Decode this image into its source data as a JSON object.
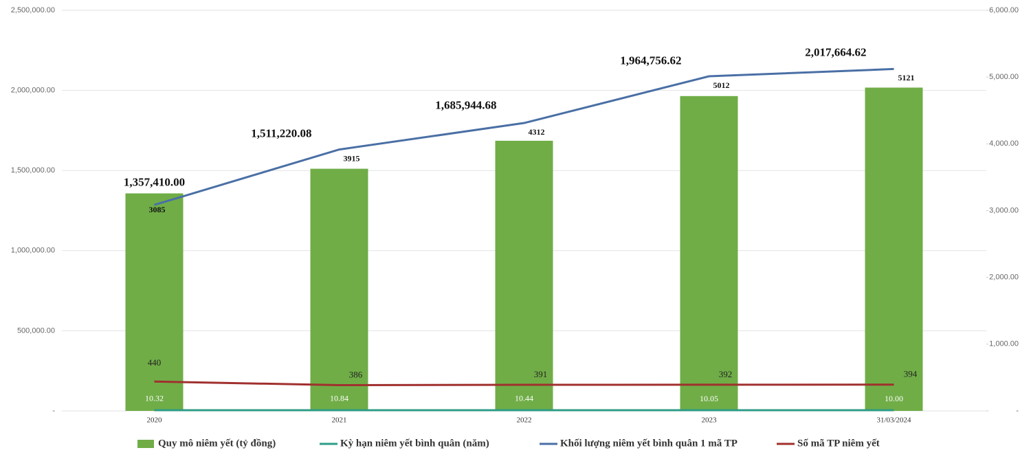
{
  "chart_data": {
    "type": "bar-line",
    "categories": [
      "2020",
      "2021",
      "2022",
      "2023",
      "31/03/2024"
    ],
    "series": [
      {
        "name": "Quy mô niêm yết (tỷ đồng)",
        "type": "bar",
        "color": "#70ad47",
        "axis": "y",
        "values": [
          1357410,
          1511220.08,
          1685944.68,
          1964756.62,
          2017664.62
        ],
        "value_labels": [
          "1,357,410.00",
          "1,511,220.08",
          "1,685,944.68",
          "1,964,756.62",
          "2,017,664.62"
        ]
      },
      {
        "name": "Kỳ hạn niêm yết bình quân (năm)",
        "type": "line",
        "color": "#2e9c86",
        "axis": "y2",
        "values": [
          10.32,
          10.84,
          10.44,
          10.05,
          10
        ],
        "value_labels": [
          "10.32",
          "10.84",
          "10.44",
          "10.05",
          "10.00"
        ]
      },
      {
        "name": "Khối lượng niêm yết bình quân 1 mã TP",
        "type": "line",
        "color": "#4a6fa5",
        "axis": "y2",
        "values": [
          3085,
          3915,
          4312,
          5012,
          5121
        ]
      },
      {
        "name": "Số mã TP niêm yết",
        "type": "line",
        "color": "#a0302e",
        "axis": "y2",
        "values": [
          440,
          386,
          391,
          392,
          394
        ]
      }
    ],
    "ylim": [
      0,
      2500000
    ],
    "yticks": [
      {
        "value": 0,
        "label": "-"
      },
      {
        "value": 500000,
        "label": "500,000.00"
      },
      {
        "value": 1000000,
        "label": "1,000,000.00"
      },
      {
        "value": 1500000,
        "label": "1,500,000.00"
      },
      {
        "value": 2000000,
        "label": "2,000,000.00"
      },
      {
        "value": 2500000,
        "label": "2,500,000.00"
      }
    ],
    "y2lim": [
      0,
      6000
    ],
    "y2ticks": [
      {
        "value": 0,
        "label": "-"
      },
      {
        "value": 1000,
        "label": "1,000.00"
      },
      {
        "value": 2000,
        "label": "2,000.00"
      },
      {
        "value": 3000,
        "label": "3,000.00"
      },
      {
        "value": 4000,
        "label": "4,000.00"
      },
      {
        "value": 5000,
        "label": "5,000.00"
      },
      {
        "value": 6000,
        "label": "6,000.00"
      }
    ],
    "grid": true,
    "legend": "bottom"
  }
}
